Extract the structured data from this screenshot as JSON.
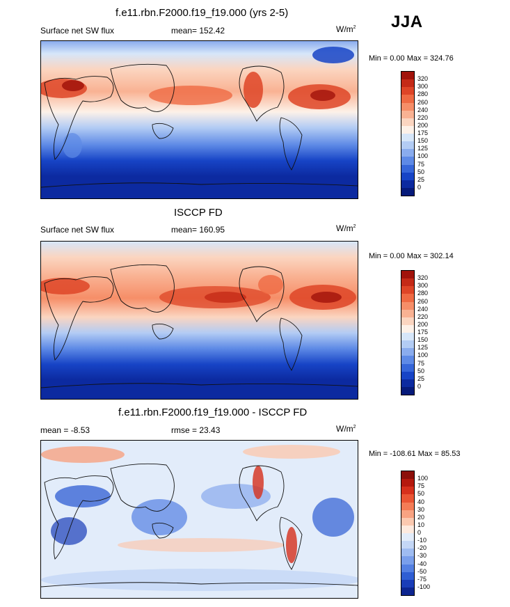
{
  "header": {
    "season": "JJA"
  },
  "chart_data": [
    {
      "type": "heatmap",
      "title": "f.e11.rbn.F2000.f19_f19.000 (yrs 2-5)",
      "left_label": "Surface net SW flux",
      "center_label": "mean= 152.42",
      "units_label": "W/m",
      "units_power": "2",
      "minmax_label": "Min =   0.00 Max = 324.76",
      "colorbar": {
        "levels": [
          "320",
          "300",
          "280",
          "260",
          "240",
          "220",
          "200",
          "175",
          "150",
          "125",
          "100",
          "75",
          "50",
          "25",
          "0"
        ],
        "colors": [
          "#a1130b",
          "#c42a17",
          "#de4527",
          "#ef6a43",
          "#f68e68",
          "#f9b293",
          "#fbd5c0",
          "#fdf1e8",
          "#d6e6f9",
          "#b3ccf4",
          "#8aacee",
          "#5e8ae6",
          "#3666d9",
          "#1744c6",
          "#0c2aa0",
          "#061a7a"
        ]
      }
    },
    {
      "type": "heatmap",
      "title": "ISCCP FD",
      "left_label": "Surface net SW flux",
      "center_label": "mean= 160.95",
      "units_label": "W/m",
      "units_power": "2",
      "minmax_label": "Min =   0.00 Max = 302.14",
      "colorbar": {
        "levels": [
          "320",
          "300",
          "280",
          "260",
          "240",
          "220",
          "200",
          "175",
          "150",
          "125",
          "100",
          "75",
          "50",
          "25",
          "0"
        ],
        "colors": [
          "#a1130b",
          "#c42a17",
          "#de4527",
          "#ef6a43",
          "#f68e68",
          "#f9b293",
          "#fbd5c0",
          "#fdf1e8",
          "#d6e6f9",
          "#b3ccf4",
          "#8aacee",
          "#5e8ae6",
          "#3666d9",
          "#1744c6",
          "#0c2aa0",
          "#061a7a"
        ]
      }
    },
    {
      "type": "heatmap",
      "title": "f.e11.rbn.F2000.f19_f19.000 - ISCCP FD",
      "left_label": "mean =  -8.53",
      "center_label": "rmse =  23.43",
      "units_label": "W/m",
      "units_power": "2",
      "minmax_label": "Min = -108.61 Max =  85.53",
      "colorbar": {
        "levels": [
          "100",
          "75",
          "50",
          "40",
          "30",
          "20",
          "10",
          "0",
          "-10",
          "-20",
          "-30",
          "-40",
          "-50",
          "-75",
          "-100"
        ],
        "colors": [
          "#8c0f0a",
          "#b5190e",
          "#d6301c",
          "#ea5534",
          "#f47c56",
          "#f8a382",
          "#fbc9b0",
          "#fdeadf",
          "#e2ecfa",
          "#c4d7f6",
          "#9fbcf1",
          "#7a9feb",
          "#5480e2",
          "#2f5ed3",
          "#1a3db8",
          "#0d2590"
        ]
      }
    }
  ]
}
